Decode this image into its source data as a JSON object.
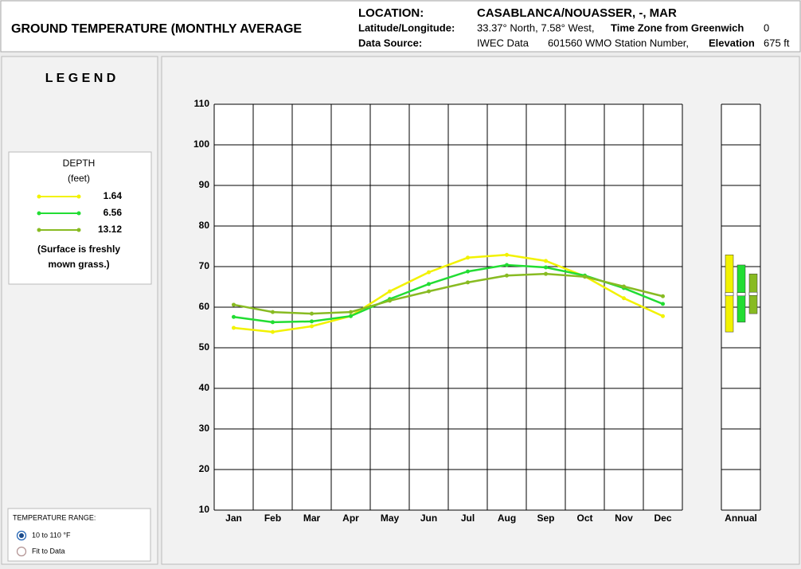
{
  "header": {
    "title": "GROUND TEMPERATURE (MONTHLY AVERAGE",
    "location_label": "LOCATION:",
    "location": "CASABLANCA/NOUASSER, -, MAR",
    "latlon_label": "Latitude/Longitude:",
    "latlon": "33.37° North, 7.58° West,",
    "timezone_label": "Time Zone from Greenwich",
    "timezone": "0",
    "source_label": "Data Source:",
    "source": "IWEC Data",
    "station": "601560 WMO Station Number,",
    "elevation_label": "Elevation",
    "elevation": "675 ft"
  },
  "legend": {
    "title": "L E G E N D",
    "depth_label": "DEPTH",
    "unit_label": "(feet)",
    "note": "(Surface is freshly mown grass.)"
  },
  "temperature_range": {
    "label": "TEMPERATURE RANGE:",
    "options": [
      "10 to 110 °F",
      "Fit to Data"
    ],
    "selected": 0
  },
  "chart_data": {
    "type": "line",
    "categories": [
      "Jan",
      "Feb",
      "Mar",
      "Apr",
      "May",
      "Jun",
      "Jul",
      "Aug",
      "Sep",
      "Oct",
      "Nov",
      "Dec"
    ],
    "annual_label": "Annual",
    "ylim": [
      10,
      110
    ],
    "yticks": [
      10,
      20,
      30,
      40,
      50,
      60,
      70,
      80,
      90,
      100,
      110
    ],
    "grid": true,
    "series": [
      {
        "name": "1.64",
        "color": "#f2f200",
        "values": [
          54.9,
          53.9,
          55.3,
          57.8,
          63.9,
          68.6,
          72.2,
          72.9,
          71.4,
          67.6,
          62.2,
          57.8
        ]
      },
      {
        "name": "6.56",
        "color": "#22dd33",
        "values": [
          57.6,
          56.3,
          56.5,
          57.8,
          62.0,
          65.7,
          68.8,
          70.4,
          69.8,
          67.8,
          64.7,
          60.8
        ]
      },
      {
        "name": "13.12",
        "color": "#88bb22",
        "values": [
          60.6,
          58.8,
          58.4,
          58.8,
          61.6,
          63.9,
          66.1,
          67.8,
          68.2,
          67.5,
          65.1,
          62.7
        ]
      }
    ]
  }
}
